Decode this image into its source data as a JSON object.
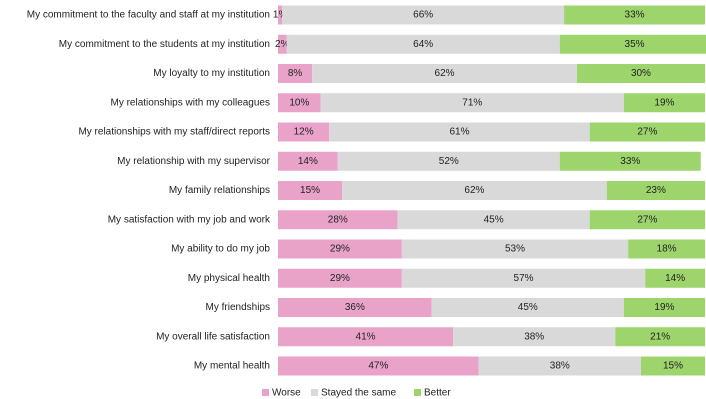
{
  "chart_data": {
    "type": "stacked-bar-horizontal",
    "categories": [
      "My commitment to the faculty and staff at my institution",
      "My commitment to the students at my institution",
      "My loyalty to my institution",
      "My relationships with my colleagues",
      "My relationships with my staff/direct reports",
      "My relationship with my supervisor",
      "My family relationships",
      "My satisfaction with my job and work",
      "My ability to do my job",
      "My physical health",
      "My friendships",
      "My overall life satisfaction",
      "My mental health"
    ],
    "series": [
      {
        "name": "Worse",
        "color": "#e9a3c9",
        "values": [
          1,
          2,
          8,
          10,
          12,
          14,
          15,
          28,
          29,
          29,
          36,
          41,
          47
        ],
        "value_labels": [
          "1%",
          "2%",
          "8%",
          "10%",
          "12%",
          "14%",
          "15%",
          "28%",
          "29%",
          "29%",
          "36%",
          "41%",
          "47%"
        ]
      },
      {
        "name": "Stayed the same",
        "color": "#d9d9d9",
        "values": [
          66,
          64,
          62,
          71,
          61,
          52,
          62,
          45,
          53,
          57,
          45,
          38,
          38
        ],
        "value_labels": [
          "66%",
          "64%",
          "62%",
          "71%",
          "61%",
          "52%",
          "62%",
          "45%",
          "53%",
          "57%",
          "45%",
          "38%",
          "38%"
        ]
      },
      {
        "name": "Better",
        "color": "#9dd46c",
        "values": [
          33,
          35,
          30,
          19,
          27,
          33,
          23,
          27,
          18,
          14,
          19,
          21,
          15
        ],
        "value_labels": [
          "33%",
          "35%",
          "30%",
          "19%",
          "27%",
          "33%",
          "23%",
          "27%",
          "18%",
          "14%",
          "19%",
          "21%",
          "15%"
        ]
      }
    ],
    "legend": "bottom"
  }
}
